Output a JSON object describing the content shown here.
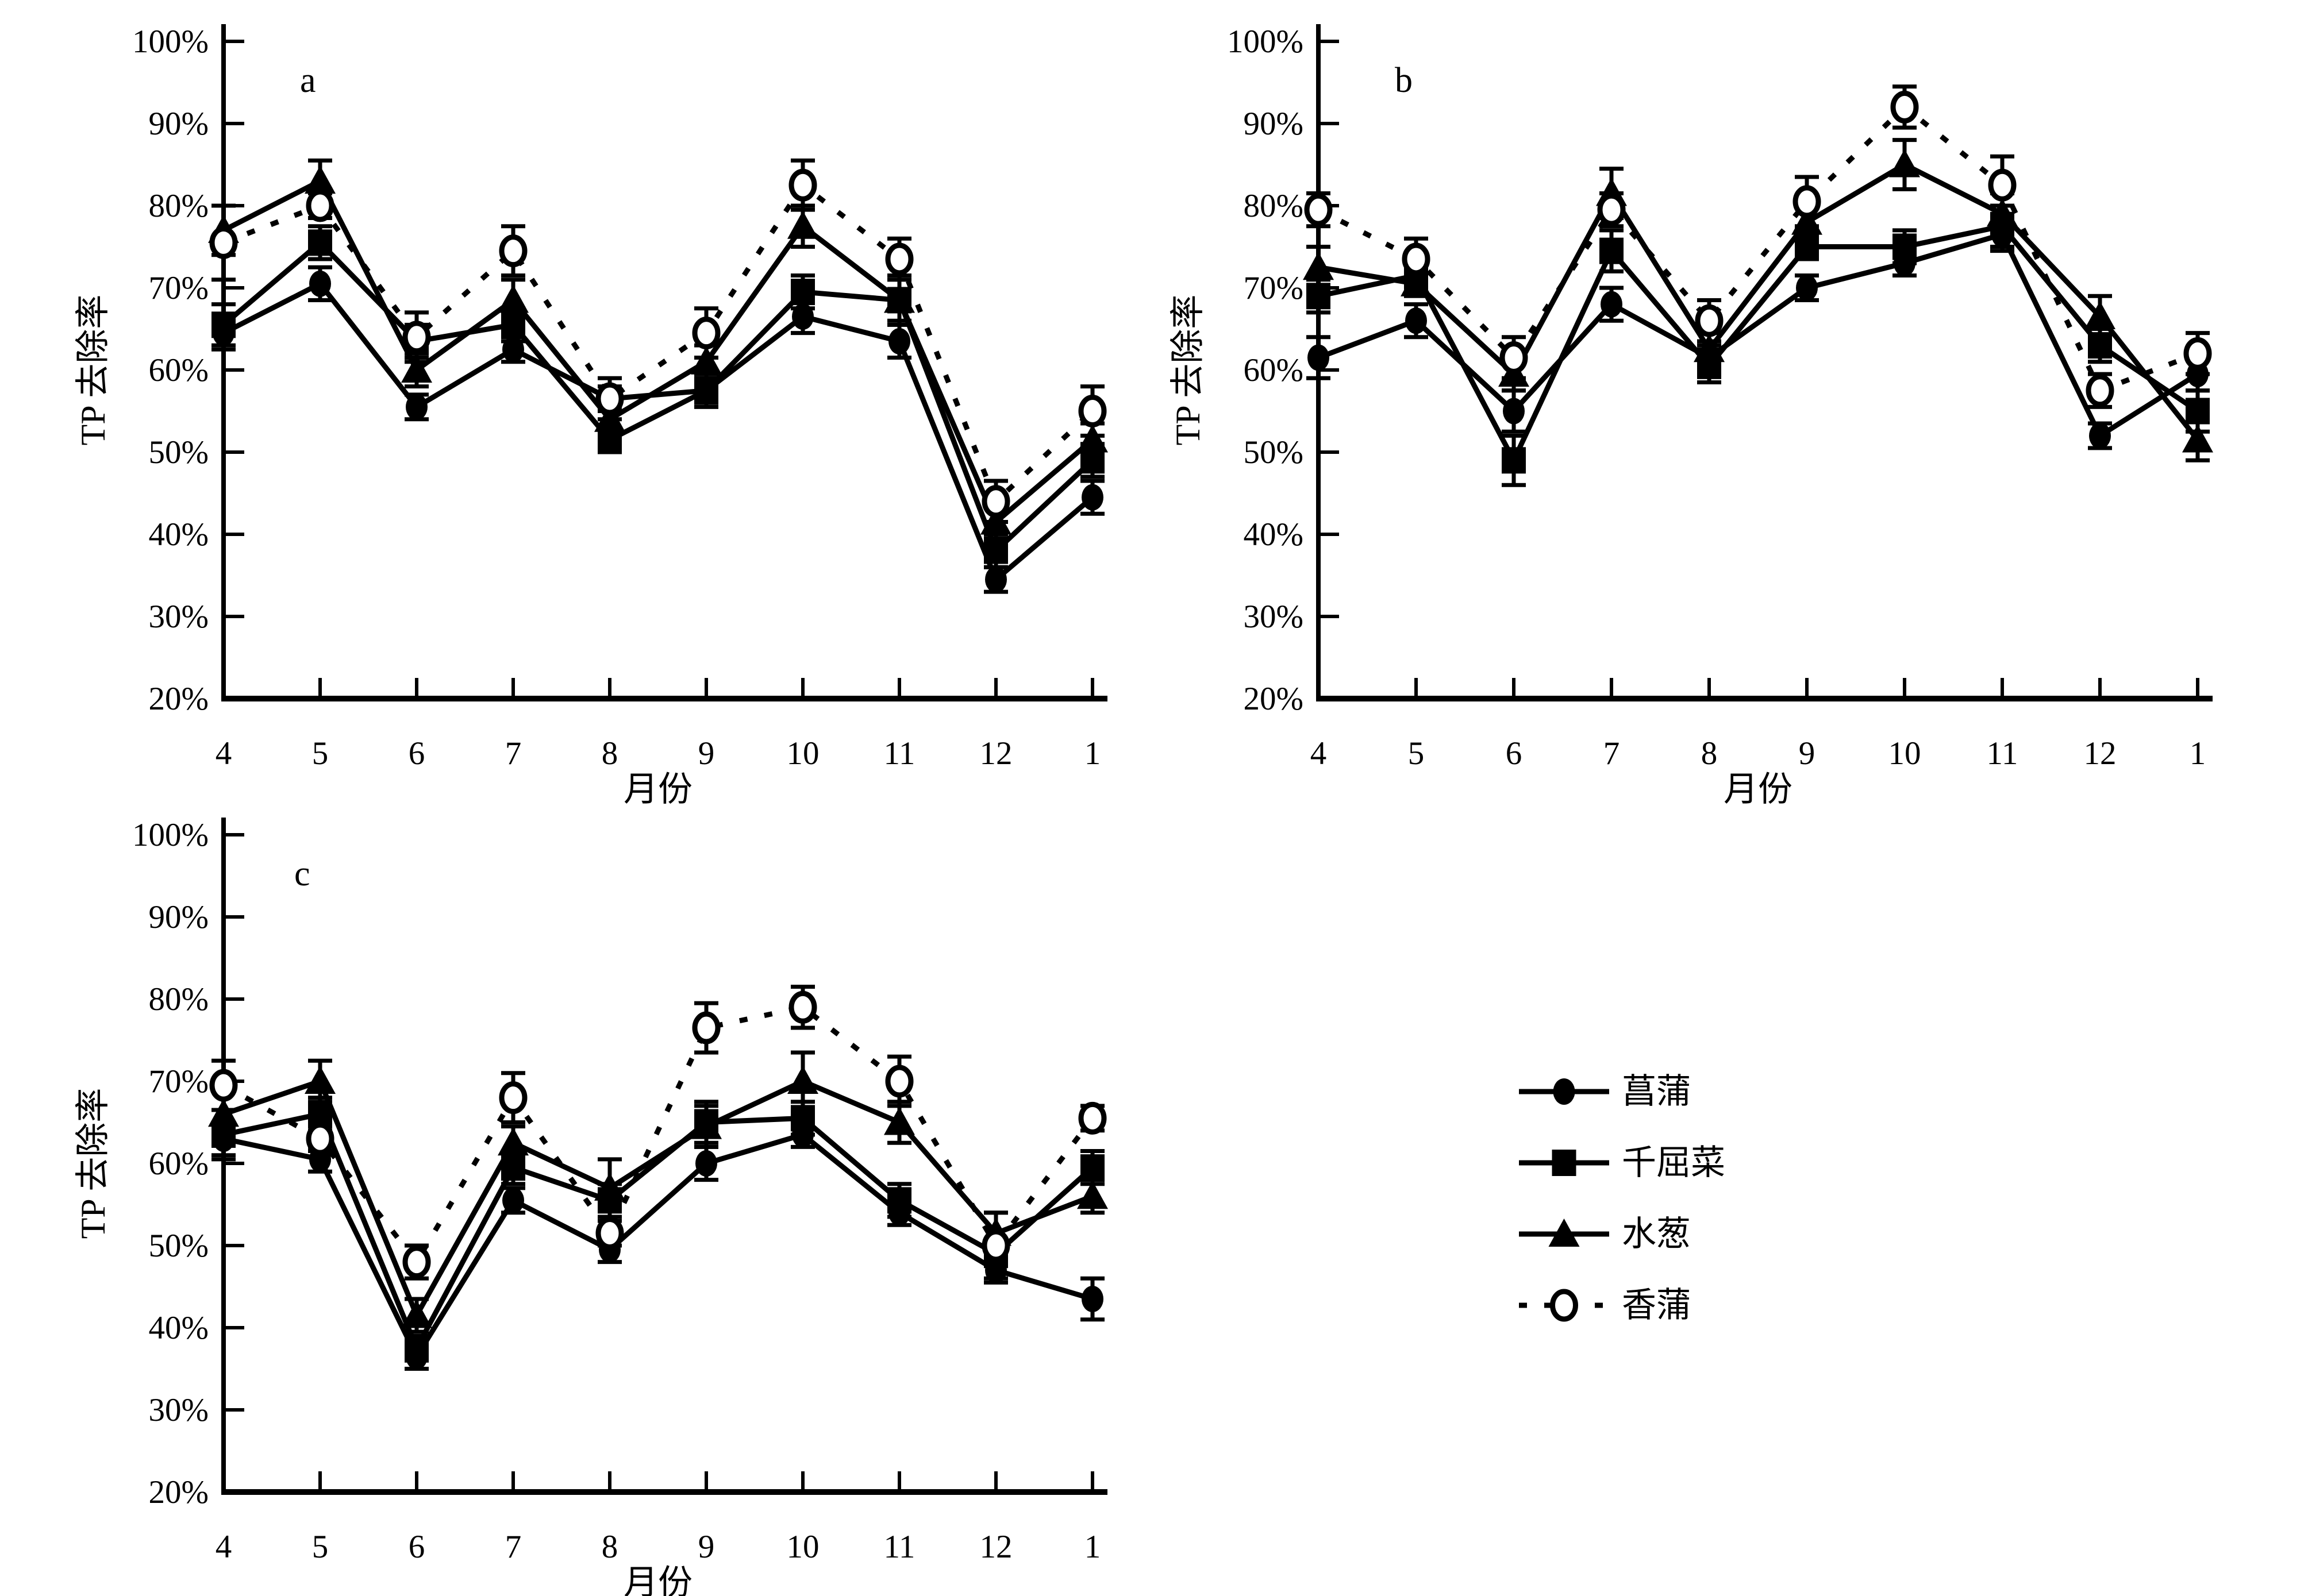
{
  "figure": {
    "background": "#ffffff",
    "ink": "#000000",
    "ylabel": "TP 去除率",
    "xlabel": "月份",
    "y_tick_labels": [
      "20%",
      "30%",
      "40%",
      "50%",
      "60%",
      "70%",
      "80%",
      "90%",
      "100%"
    ],
    "x_tick_labels": [
      "4",
      "5",
      "6",
      "7",
      "8",
      "9",
      "10",
      "11",
      "12",
      "1"
    ],
    "legend": [
      {
        "label": "菖蒲",
        "marker": "filled-circle",
        "line": "solid"
      },
      {
        "label": "千屈菜",
        "marker": "filled-square",
        "line": "solid"
      },
      {
        "label": "水葱",
        "marker": "filled-triangle",
        "line": "solid"
      },
      {
        "label": "香蒲",
        "marker": "open-circle",
        "line": "dotted"
      }
    ]
  },
  "chart_data": [
    {
      "type": "line",
      "panel_label": "a",
      "title": "a",
      "xlabel": "月份",
      "ylabel": "TP 去除率",
      "categories": [
        "4",
        "5",
        "6",
        "7",
        "8",
        "9",
        "10",
        "11",
        "12",
        "1"
      ],
      "ylim": [
        20,
        100
      ],
      "ytick_step": 10,
      "unit": "percent",
      "grid": false,
      "series": [
        {
          "name": "菖蒲",
          "marker": "filled-circle",
          "line": "solid",
          "values": [
            64.5,
            70.5,
            55.5,
            62.5,
            56.5,
            57.5,
            66.5,
            63.5,
            34.5,
            44.5
          ],
          "errors": [
            2,
            2,
            1.5,
            1.5,
            1.5,
            1.5,
            2,
            2,
            1.5,
            2
          ]
        },
        {
          "name": "千屈菜",
          "marker": "filled-square",
          "line": "solid",
          "values": [
            65.5,
            75.5,
            63.5,
            65.5,
            51.5,
            57.5,
            69.5,
            68.5,
            38,
            49
          ],
          "errors": [
            2.5,
            2,
            2,
            2,
            1.5,
            2,
            2,
            3,
            2,
            2
          ]
        },
        {
          "name": "水葱",
          "marker": "filled-triangle",
          "line": "solid",
          "values": [
            77,
            83,
            60,
            68.5,
            54,
            61,
            77.5,
            68.5,
            41.5,
            51.5
          ],
          "errors": [
            3,
            2.5,
            2,
            2.5,
            1.5,
            2,
            2.5,
            2.5,
            2,
            2
          ]
        },
        {
          "name": "香蒲",
          "marker": "open-circle",
          "line": "dotted",
          "values": [
            75.5,
            80,
            64,
            74.5,
            56.5,
            64.5,
            82.5,
            73.5,
            44,
            55
          ],
          "errors": [
            4.5,
            1.5,
            3,
            3,
            2.5,
            3,
            3,
            2.5,
            2.5,
            3
          ]
        }
      ]
    },
    {
      "type": "line",
      "panel_label": "b",
      "title": "b",
      "xlabel": "月份",
      "ylabel": "TP 去除率",
      "categories": [
        "4",
        "5",
        "6",
        "7",
        "8",
        "9",
        "10",
        "11",
        "12",
        "1"
      ],
      "ylim": [
        20,
        100
      ],
      "ytick_step": 10,
      "unit": "percent",
      "grid": false,
      "series": [
        {
          "name": "菖蒲",
          "marker": "filled-circle",
          "line": "solid",
          "values": [
            61.5,
            66,
            55,
            68,
            61.5,
            70,
            73,
            76.5,
            52,
            59.5
          ],
          "errors": [
            2.5,
            2,
            2.5,
            2,
            1.5,
            1.5,
            1.5,
            2,
            1.5,
            2
          ]
        },
        {
          "name": "千屈菜",
          "marker": "filled-square",
          "line": "solid",
          "values": [
            69,
            71.5,
            49,
            74.5,
            60.5,
            75,
            75,
            77.5,
            63,
            55
          ],
          "errors": [
            2,
            1.5,
            3,
            2.5,
            2,
            1.5,
            2,
            2.5,
            2,
            2.5
          ]
        },
        {
          "name": "水葱",
          "marker": "filled-triangle",
          "line": "solid",
          "values": [
            72.5,
            70.5,
            59.5,
            81.5,
            62.5,
            78,
            85,
            79,
            66.5,
            51.5
          ],
          "errors": [
            2.5,
            1.5,
            2,
            3,
            2,
            2,
            3,
            2.5,
            2.5,
            2.5
          ]
        },
        {
          "name": "香蒲",
          "marker": "open-circle",
          "line": "dotted",
          "values": [
            79.5,
            73.5,
            61.5,
            79.5,
            66,
            80.5,
            92,
            82.5,
            57.5,
            62
          ],
          "errors": [
            2,
            2.5,
            2.5,
            2,
            2.5,
            3,
            2.5,
            3.5,
            2,
            2.5
          ]
        }
      ]
    },
    {
      "type": "line",
      "panel_label": "c",
      "title": "c",
      "xlabel": "月份",
      "ylabel": "TP 去除率",
      "categories": [
        "4",
        "5",
        "6",
        "7",
        "8",
        "9",
        "10",
        "11",
        "12",
        "1"
      ],
      "ylim": [
        20,
        100
      ],
      "ytick_step": 10,
      "unit": "percent",
      "grid": false,
      "series": [
        {
          "name": "菖蒲",
          "marker": "filled-circle",
          "line": "solid",
          "values": [
            63,
            60.5,
            36.5,
            55.5,
            49.5,
            60,
            63.5,
            54,
            47,
            43.5
          ],
          "errors": [
            2,
            1.5,
            1.5,
            1.5,
            1.5,
            2,
            1.5,
            1.5,
            1.5,
            2.5
          ]
        },
        {
          "name": "千屈菜",
          "marker": "filled-square",
          "line": "solid",
          "values": [
            63.5,
            66,
            37.5,
            59.5,
            55.5,
            65,
            65.5,
            55.5,
            49,
            59.5
          ],
          "errors": [
            3,
            2,
            1.5,
            2,
            2,
            2.5,
            2,
            2,
            1.5,
            2
          ]
        },
        {
          "name": "水葱",
          "marker": "filled-triangle",
          "line": "solid",
          "values": [
            66,
            70,
            41.5,
            62.5,
            57,
            64.5,
            70,
            65,
            51.5,
            56
          ],
          "errors": [
            3.5,
            2.5,
            2,
            2,
            3.5,
            2.5,
            3.5,
            2.5,
            2.5,
            2
          ]
        },
        {
          "name": "香蒲",
          "marker": "open-circle",
          "line": "dotted",
          "values": [
            69.5,
            63,
            48,
            68,
            51.5,
            76.5,
            79,
            70,
            50,
            65.5
          ],
          "errors": [
            3,
            1.5,
            2,
            3,
            1.5,
            3,
            2.5,
            3,
            4,
            1.5
          ]
        }
      ]
    }
  ]
}
